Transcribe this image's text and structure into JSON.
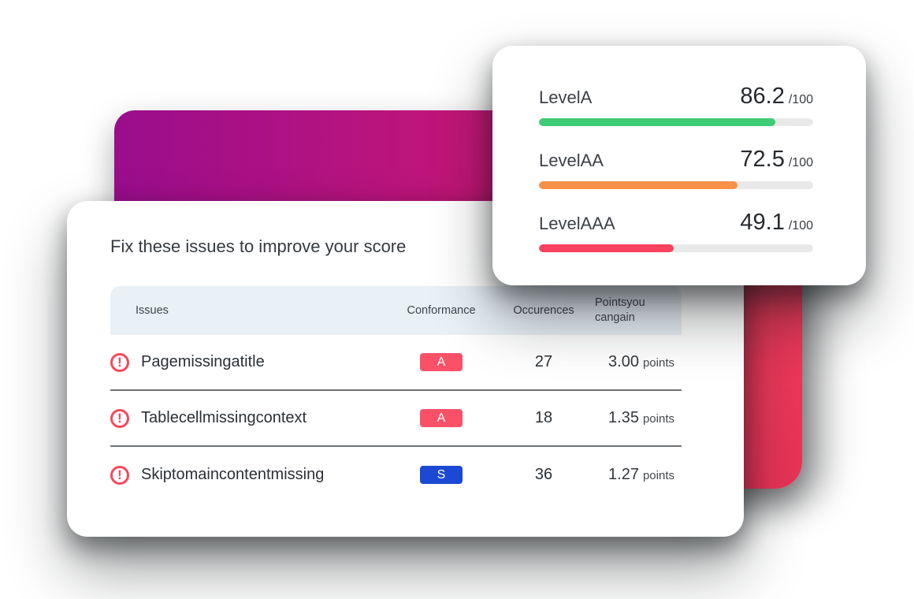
{
  "score_card": {
    "track_color": "#e9e9ea",
    "levels": [
      {
        "label": "LevelA",
        "score": "86.2",
        "max": "/100",
        "value": 86.2,
        "color": "#3ecb76"
      },
      {
        "label": "LevelAA",
        "score": "72.5",
        "max": "/100",
        "value": 72.5,
        "color": "#f79149"
      },
      {
        "label": "LevelAAA",
        "score": "49.1",
        "max": "/100",
        "value": 49.1,
        "color": "#f8425f"
      }
    ]
  },
  "issues_card": {
    "title": "Fix these issues to improve your score",
    "table": {
      "headers": {
        "issues": "Issues",
        "conformance": "Conformance",
        "occurences": "Occurences",
        "points_line1": "Pointsyou",
        "points_line2": "cangain"
      },
      "rows": [
        {
          "issue": "Pagemissingatitle",
          "conformance": "A",
          "badge_color": "#fa5169",
          "occurences": "27",
          "points": "3.00",
          "points_suffix": "points"
        },
        {
          "issue": "Tablecellmissingcontext",
          "conformance": "A",
          "badge_color": "#fa5169",
          "occurences": "18",
          "points": "1.35",
          "points_suffix": "points"
        },
        {
          "issue": "Skiptomaincontentmissing",
          "conformance": "S",
          "badge_color": "#1c49d4",
          "occurences": "36",
          "points": "1.27",
          "points_suffix": "points"
        }
      ]
    }
  },
  "icons": {
    "warning": "!"
  },
  "colors": {
    "magenta_gradient_start": "#9a0d8d",
    "magenta_gradient_end": "#e41e67",
    "red_card": "#ef3b5c",
    "warning_icon": "#f4475f",
    "header_bg": "#e9f1f7",
    "divider": "#6d7175"
  }
}
